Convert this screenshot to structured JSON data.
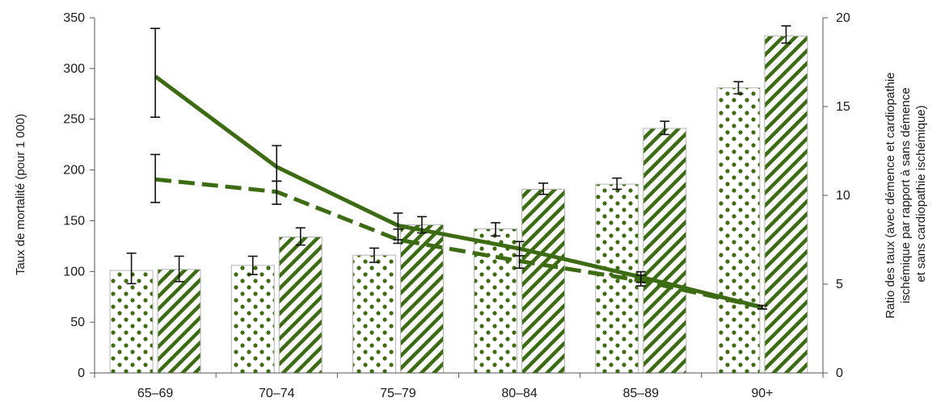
{
  "chart_data": {
    "type": "bar",
    "categories": [
      "65–69",
      "70–74",
      "75–79",
      "80–84",
      "85–89",
      "90+"
    ],
    "ylabel": "Taux de mortalité (pour 1 000)",
    "y2label_lines": [
      "Ratio des taux (avec démence et cardiopathie",
      "ischémique par rapport à sans démence",
      "et sans cardiopathie ischémique)"
    ],
    "ylim": [
      0,
      350
    ],
    "y_ticks": [
      0,
      50,
      100,
      150,
      200,
      250,
      300,
      350
    ],
    "y2lim": [
      0,
      20
    ],
    "y2_ticks": [
      0,
      5,
      10,
      15,
      20
    ],
    "grid": false,
    "series": [
      {
        "kind": "bar",
        "pattern": "dots",
        "axis": "left",
        "values": [
          101,
          106,
          116,
          142,
          186,
          281
        ],
        "err_low": [
          88,
          97,
          109,
          135,
          181,
          275
        ],
        "err_high": [
          118,
          115,
          123,
          148,
          192,
          287
        ]
      },
      {
        "kind": "bar",
        "pattern": "stripes",
        "axis": "left",
        "values": [
          102,
          134,
          146,
          181,
          241,
          332
        ],
        "err_low": [
          90,
          126,
          138,
          176,
          235,
          325
        ],
        "err_high": [
          115,
          143,
          154,
          187,
          248,
          342
        ]
      },
      {
        "kind": "line",
        "style": "solid",
        "axis": "right",
        "values": [
          16.7,
          11.6,
          8.3,
          7.0,
          5.4,
          3.7
        ],
        "err_low": [
          14.4,
          10.8,
          7.5,
          6.6,
          5.1,
          3.6
        ],
        "err_high": [
          19.4,
          12.8,
          9.0,
          7.4,
          5.7,
          3.8
        ]
      },
      {
        "kind": "line",
        "style": "dashed",
        "axis": "right",
        "values": [
          10.9,
          10.2,
          7.5,
          6.3,
          5.2,
          3.7
        ],
        "err_low": [
          9.6,
          9.5,
          7.3,
          5.9,
          4.9,
          3.6
        ],
        "err_high": [
          12.3,
          10.8,
          8.1,
          6.6,
          5.5,
          3.8
        ]
      }
    ],
    "colors": {
      "green": "#3d6b14",
      "bar_edge": "#b3b3b3",
      "axis": "#555555",
      "error": "#111111"
    }
  }
}
